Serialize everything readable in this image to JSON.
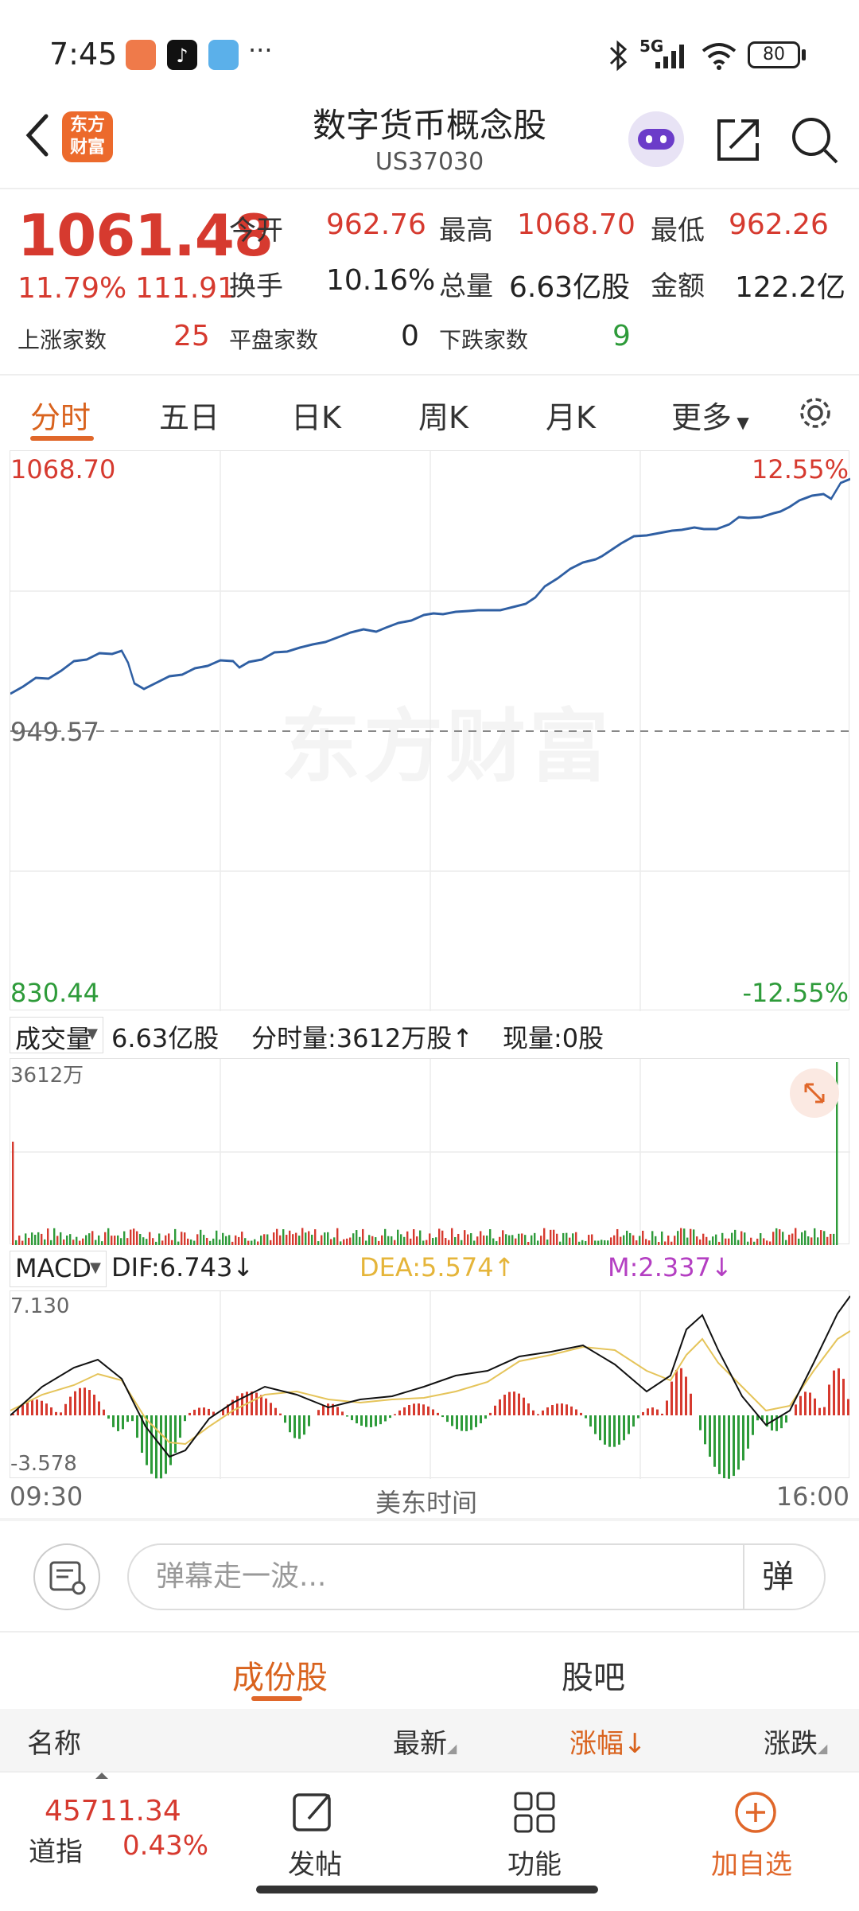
{
  "status_bar": {
    "time": "7:45",
    "network": "5G",
    "battery": "80"
  },
  "header": {
    "title": "数字货币概念股",
    "code": "US37030",
    "logo_text": "东方财富"
  },
  "quote": {
    "price": "1061.48",
    "change_pct": "11.79%",
    "change": "111.91",
    "open_label": "今开",
    "open": "962.76",
    "high_label": "最高",
    "high": "1068.70",
    "low_label": "最低",
    "low": "962.26",
    "turnover_label": "换手",
    "turnover": "10.16%",
    "volume_label": "总量",
    "volume": "6.63亿股",
    "amount_label": "金额",
    "amount": "122.2亿",
    "up_label": "上涨家数",
    "up": "25",
    "flat_label": "平盘家数",
    "flat": "0",
    "down_label": "下跌家数",
    "down": "9"
  },
  "tabs": [
    "分时",
    "五日",
    "日K",
    "周K",
    "月K",
    "更多"
  ],
  "price_chart": {
    "top_price": "1068.70",
    "top_pct": "12.55%",
    "mid_price": "949.57",
    "bottom_price": "830.44",
    "bottom_pct": "-12.55%",
    "watermark": "东方财富"
  },
  "volume_bar": {
    "label": "成交量",
    "total": "6.63亿股",
    "minute": "分时量:3612万股↑",
    "current": "现量:0股",
    "max_label": "3612万"
  },
  "macd_bar": {
    "label": "MACD",
    "dif": "DIF:6.743↓",
    "dea": "DEA:5.574↑",
    "m": "M:2.337↓",
    "top": "7.130",
    "bottom": "-3.578"
  },
  "time_axis": {
    "start": "09:30",
    "middle": "美东时间",
    "end": "16:00"
  },
  "comment": {
    "placeholder": "弹幕走一波...",
    "danmu": "弹"
  },
  "segment": {
    "left": "成份股",
    "right": "股吧"
  },
  "list_header": {
    "name": "名称",
    "latest": "最新",
    "change_pct": "涨幅",
    "change": "涨跌"
  },
  "bottom_nav": {
    "index_value": "45711.34",
    "index_name": "道指",
    "index_pct": "0.43%",
    "post": "发帖",
    "func": "功能",
    "add": "加自选"
  },
  "colors": {
    "up": "#d63a2f",
    "down": "#2e9b3a",
    "line": "#2f5fa3",
    "accent": "#e0672a"
  }
}
